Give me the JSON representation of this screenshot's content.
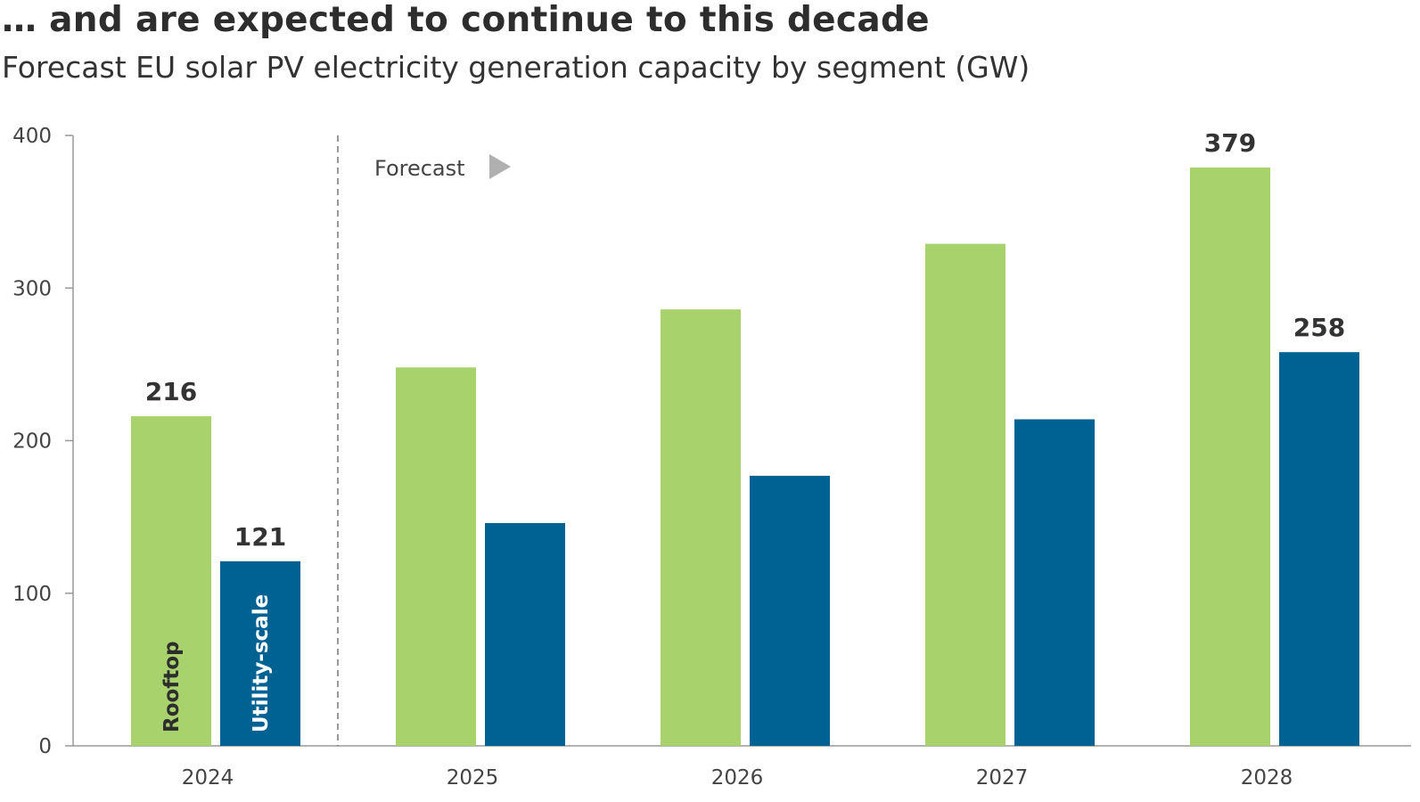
{
  "title": "… and are expected to continue to this decade",
  "subtitle": "Forecast EU solar PV electricity generation capacity by segment (GW)",
  "forecast_label": "Forecast",
  "colors": {
    "rooftop": "#a8d26b",
    "utility": "#006292",
    "axis": "#999999",
    "divider": "#777777",
    "arrow": "#b0b0b0"
  },
  "chart_data": {
    "type": "bar",
    "categories": [
      "2024",
      "2025",
      "2026",
      "2027",
      "2028"
    ],
    "series": [
      {
        "name": "Rooftop",
        "values": [
          216,
          248,
          286,
          329,
          379
        ]
      },
      {
        "name": "Utility-scale",
        "values": [
          121,
          146,
          177,
          214,
          258
        ]
      }
    ],
    "data_labels": [
      {
        "series": 0,
        "index": 0,
        "text": "216"
      },
      {
        "series": 1,
        "index": 0,
        "text": "121"
      },
      {
        "series": 0,
        "index": 4,
        "text": "379"
      },
      {
        "series": 1,
        "index": 4,
        "text": "258"
      }
    ],
    "yticks": [
      "0",
      "100",
      "200",
      "300",
      "400"
    ],
    "ylim": [
      0,
      400
    ],
    "grid": false,
    "forecast_from_index": 1
  }
}
